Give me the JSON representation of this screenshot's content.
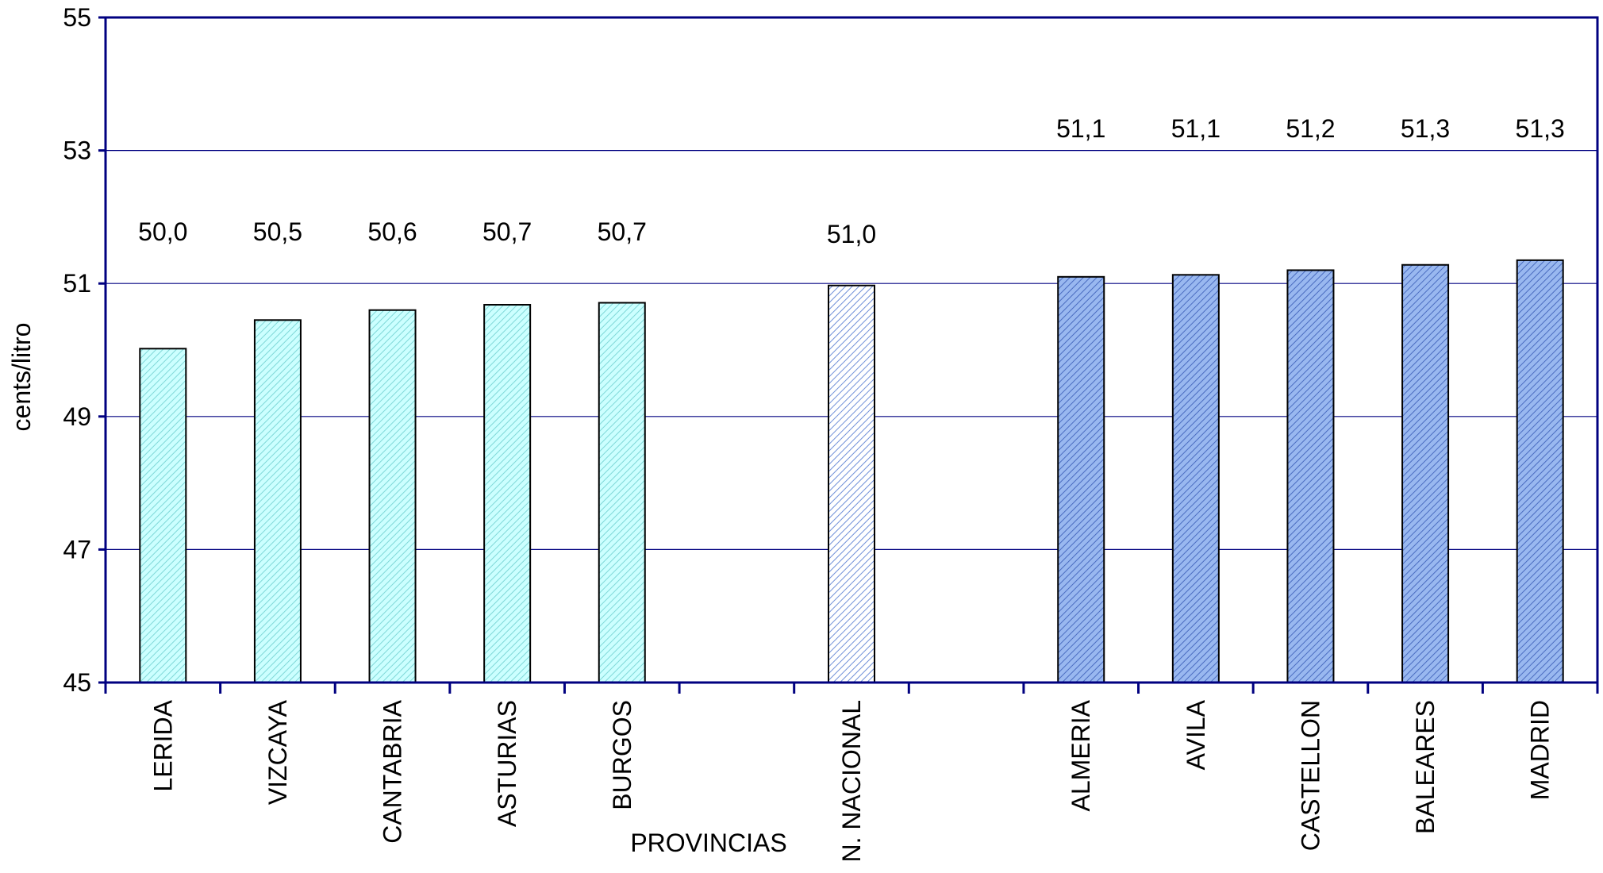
{
  "chart_data": {
    "type": "bar",
    "xlabel": "PROVINCIAS",
    "ylabel": "cents/litro",
    "ylim": [
      45,
      55
    ],
    "yticks": [
      "45",
      "47",
      "49",
      "51",
      "53",
      "55"
    ],
    "grid": true,
    "slots": 13,
    "bars": [
      {
        "slot": 0,
        "category": "LERIDA",
        "value": 50.02,
        "label": "50,0",
        "group": "low"
      },
      {
        "slot": 1,
        "category": "VIZCAYA",
        "value": 50.45,
        "label": "50,5",
        "group": "low"
      },
      {
        "slot": 2,
        "category": "CANTABRIA",
        "value": 50.6,
        "label": "50,6",
        "group": "low"
      },
      {
        "slot": 3,
        "category": "ASTURIAS",
        "value": 50.68,
        "label": "50,7",
        "group": "low"
      },
      {
        "slot": 4,
        "category": "BURGOS",
        "value": 50.71,
        "label": "50,7",
        "group": "low"
      },
      {
        "slot": 6,
        "category": "N. NACIONAL",
        "value": 50.97,
        "label": "51,0",
        "group": "national"
      },
      {
        "slot": 8,
        "category": "ALMERIA",
        "value": 51.1,
        "label": "51,1",
        "group": "high"
      },
      {
        "slot": 9,
        "category": "AVILA",
        "value": 51.13,
        "label": "51,1",
        "group": "high"
      },
      {
        "slot": 10,
        "category": "CASTELLON",
        "value": 51.2,
        "label": "51,2",
        "group": "high"
      },
      {
        "slot": 11,
        "category": "BALEARES",
        "value": 51.28,
        "label": "51,3",
        "group": "high"
      },
      {
        "slot": 12,
        "category": "MADRID",
        "value": 51.35,
        "label": "51,3",
        "group": "high"
      }
    ],
    "colors": {
      "low_fill": "#CCFFFF",
      "low_hatch": "#7FD8D8",
      "national_fill": "#FFFFFF",
      "national_hatch": "#6F8FD8",
      "high_fill": "#99B8F0",
      "high_hatch": "#4A6CC0",
      "axis": "#000080",
      "grid": "#000080",
      "bar_outline": "#000000"
    }
  }
}
